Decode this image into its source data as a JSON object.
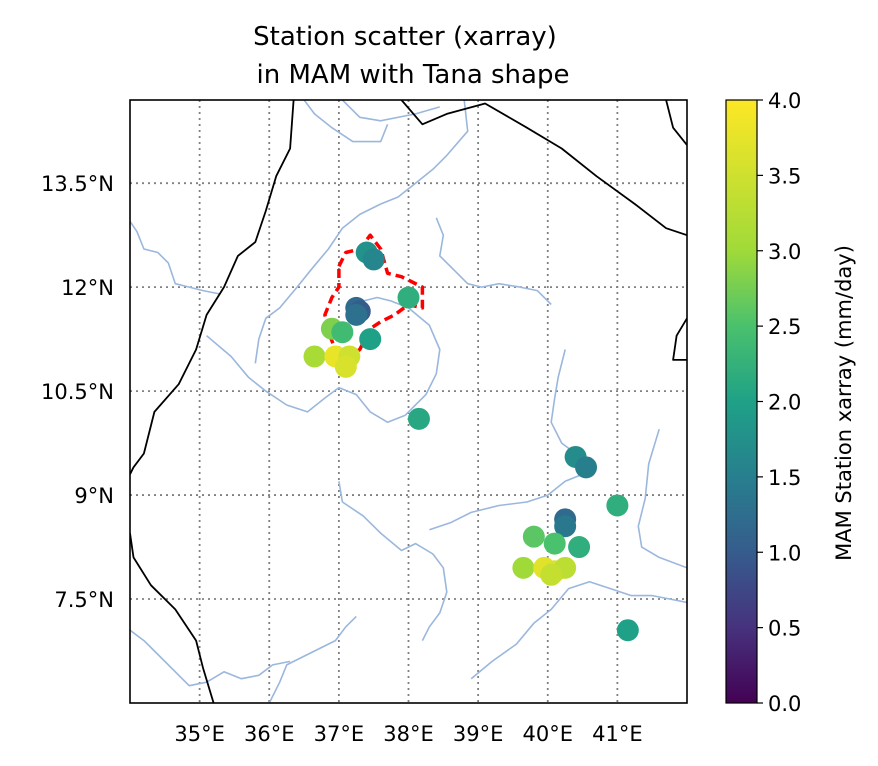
{
  "chart_data": {
    "type": "scatter",
    "title_line1": "Station scatter (xarray)",
    "title_line2": "in MAM with Tana shape",
    "xlim": [
      34.0,
      42.0
    ],
    "ylim": [
      6.0,
      14.7
    ],
    "x_ticks": [
      35,
      36,
      37,
      38,
      39,
      40,
      41
    ],
    "x_tick_labels": [
      "35°E",
      "36°E",
      "37°E",
      "38°E",
      "39°E",
      "40°E",
      "41°E"
    ],
    "y_ticks": [
      7.5,
      9,
      10.5,
      12,
      13.5
    ],
    "y_tick_labels": [
      "7.5°N",
      "9°N",
      "10.5°N",
      "12°N",
      "13.5°N"
    ],
    "grid": true,
    "colorbar": {
      "label": "MAM Station xarray (mm/day)",
      "vmin": 0.0,
      "vmax": 4.0,
      "ticks": [
        0.0,
        0.5,
        1.0,
        1.5,
        2.0,
        2.5,
        3.0,
        3.5,
        4.0
      ],
      "tick_labels": [
        "0.0",
        "0.5",
        "1.0",
        "1.5",
        "2.0",
        "2.5",
        "3.0",
        "3.5",
        "4.0"
      ],
      "colormap": "viridis"
    },
    "points": [
      {
        "lon": 37.4,
        "lat": 12.5,
        "value": 1.8
      },
      {
        "lon": 37.5,
        "lat": 12.4,
        "value": 1.6
      },
      {
        "lon": 38.0,
        "lat": 11.85,
        "value": 2.2
      },
      {
        "lon": 37.25,
        "lat": 11.7,
        "value": 1.2
      },
      {
        "lon": 37.3,
        "lat": 11.65,
        "value": 1.0
      },
      {
        "lon": 37.25,
        "lat": 11.6,
        "value": 1.3
      },
      {
        "lon": 36.9,
        "lat": 11.4,
        "value": 2.8
      },
      {
        "lon": 37.05,
        "lat": 11.35,
        "value": 2.4
      },
      {
        "lon": 37.45,
        "lat": 11.25,
        "value": 2.0
      },
      {
        "lon": 36.65,
        "lat": 11.0,
        "value": 3.1
      },
      {
        "lon": 36.95,
        "lat": 11.0,
        "value": 3.8
      },
      {
        "lon": 37.15,
        "lat": 11.0,
        "value": 3.5
      },
      {
        "lon": 37.1,
        "lat": 10.85,
        "value": 3.6
      },
      {
        "lon": 38.15,
        "lat": 10.1,
        "value": 2.1
      },
      {
        "lon": 40.4,
        "lat": 9.55,
        "value": 1.7
      },
      {
        "lon": 40.55,
        "lat": 9.4,
        "value": 1.5
      },
      {
        "lon": 41.0,
        "lat": 8.85,
        "value": 2.2
      },
      {
        "lon": 40.25,
        "lat": 8.65,
        "value": 1.2
      },
      {
        "lon": 40.25,
        "lat": 8.55,
        "value": 1.4
      },
      {
        "lon": 39.8,
        "lat": 8.4,
        "value": 2.6
      },
      {
        "lon": 40.1,
        "lat": 8.3,
        "value": 2.5
      },
      {
        "lon": 40.45,
        "lat": 8.25,
        "value": 2.2
      },
      {
        "lon": 39.65,
        "lat": 7.95,
        "value": 3.0
      },
      {
        "lon": 39.95,
        "lat": 7.95,
        "value": 3.7
      },
      {
        "lon": 40.1,
        "lat": 7.9,
        "value": 3.6
      },
      {
        "lon": 40.25,
        "lat": 7.95,
        "value": 3.3
      },
      {
        "lon": 40.05,
        "lat": 7.85,
        "value": 3.4
      },
      {
        "lon": 41.15,
        "lat": 7.05,
        "value": 2.0
      }
    ],
    "tana_shape": [
      [
        37.0,
        12.3
      ],
      [
        37.1,
        12.5
      ],
      [
        37.3,
        12.55
      ],
      [
        37.45,
        12.75
      ],
      [
        37.6,
        12.55
      ],
      [
        37.7,
        12.2
      ],
      [
        37.9,
        12.15
      ],
      [
        38.2,
        12.0
      ],
      [
        38.2,
        11.7
      ],
      [
        38.0,
        11.75
      ],
      [
        37.8,
        11.6
      ],
      [
        37.6,
        11.5
      ],
      [
        37.45,
        11.4
      ],
      [
        37.3,
        11.1
      ],
      [
        37.15,
        11.0
      ],
      [
        36.95,
        11.1
      ],
      [
        36.85,
        11.35
      ],
      [
        36.8,
        11.6
      ],
      [
        36.9,
        11.85
      ],
      [
        37.0,
        12.0
      ],
      [
        37.0,
        12.3
      ]
    ],
    "borders": [
      [
        [
          36.35,
          14.7
        ],
        [
          36.3,
          14.0
        ],
        [
          36.1,
          13.6
        ],
        [
          35.95,
          13.1
        ],
        [
          35.8,
          12.65
        ],
        [
          35.55,
          12.45
        ],
        [
          35.35,
          12.0
        ],
        [
          35.1,
          11.6
        ],
        [
          34.95,
          11.1
        ],
        [
          34.7,
          10.6
        ],
        [
          34.35,
          10.2
        ],
        [
          34.2,
          9.6
        ],
        [
          34.05,
          9.4
        ],
        [
          34.0,
          9.3
        ]
      ],
      [
        [
          34.0,
          8.45
        ],
        [
          34.05,
          8.1
        ],
        [
          34.3,
          7.7
        ],
        [
          34.65,
          7.35
        ],
        [
          34.95,
          6.9
        ],
        [
          35.05,
          6.5
        ],
        [
          35.2,
          6.0
        ]
      ],
      [
        [
          37.9,
          14.7
        ],
        [
          38.2,
          14.35
        ],
        [
          38.55,
          14.5
        ],
        [
          39.1,
          14.65
        ],
        [
          39.7,
          14.3
        ],
        [
          40.2,
          14.0
        ],
        [
          40.7,
          13.6
        ],
        [
          41.25,
          13.2
        ],
        [
          41.7,
          12.85
        ],
        [
          42.0,
          12.75
        ]
      ],
      [
        [
          41.7,
          14.7
        ],
        [
          41.8,
          14.3
        ],
        [
          42.0,
          14.05
        ]
      ],
      [
        [
          42.0,
          11.55
        ],
        [
          41.85,
          11.3
        ],
        [
          41.8,
          10.95
        ],
        [
          42.0,
          10.95
        ]
      ]
    ],
    "rivers": [
      [
        [
          36.5,
          14.7
        ],
        [
          36.65,
          14.5
        ],
        [
          36.9,
          14.3
        ],
        [
          37.2,
          14.1
        ],
        [
          37.6,
          14.1
        ],
        [
          37.7,
          14.35
        ]
      ],
      [
        [
          37.05,
          14.7
        ],
        [
          37.3,
          14.45
        ],
        [
          37.6,
          14.4
        ],
        [
          38.1,
          14.5
        ],
        [
          38.45,
          14.6
        ]
      ],
      [
        [
          38.8,
          14.7
        ],
        [
          38.85,
          14.25
        ],
        [
          38.55,
          13.9
        ],
        [
          38.35,
          13.7
        ],
        [
          38.1,
          13.5
        ],
        [
          37.85,
          13.3
        ],
        [
          37.6,
          13.2
        ],
        [
          37.3,
          13.05
        ],
        [
          37.05,
          12.85
        ],
        [
          36.85,
          12.55
        ],
        [
          36.6,
          12.25
        ],
        [
          36.4,
          12.0
        ],
        [
          36.15,
          11.7
        ],
        [
          35.95,
          11.55
        ],
        [
          35.85,
          11.25
        ],
        [
          35.8,
          10.9
        ]
      ],
      [
        [
          34.0,
          12.95
        ],
        [
          34.1,
          12.8
        ],
        [
          34.2,
          12.55
        ],
        [
          34.4,
          12.5
        ],
        [
          34.55,
          12.35
        ],
        [
          34.65,
          12.05
        ],
        [
          34.85,
          12.0
        ],
        [
          35.05,
          11.95
        ],
        [
          35.3,
          11.9
        ]
      ],
      [
        [
          35.1,
          11.3
        ],
        [
          35.45,
          11.0
        ],
        [
          35.7,
          10.7
        ],
        [
          35.95,
          10.5
        ],
        [
          36.25,
          10.3
        ],
        [
          36.55,
          10.2
        ],
        [
          36.8,
          10.4
        ],
        [
          37.0,
          10.55
        ],
        [
          37.25,
          10.45
        ],
        [
          37.45,
          10.2
        ],
        [
          37.7,
          10.05
        ],
        [
          37.95,
          10.15
        ],
        [
          38.25,
          10.45
        ],
        [
          38.4,
          10.75
        ],
        [
          38.45,
          11.1
        ],
        [
          38.3,
          11.45
        ],
        [
          38.0,
          11.7
        ],
        [
          37.75,
          11.8
        ],
        [
          37.55,
          11.85
        ],
        [
          37.35,
          11.8
        ]
      ],
      [
        [
          38.4,
          13.0
        ],
        [
          38.5,
          12.75
        ],
        [
          38.45,
          12.45
        ],
        [
          38.65,
          12.25
        ],
        [
          38.85,
          12.05
        ],
        [
          39.05,
          12.0
        ],
        [
          39.3,
          12.05
        ],
        [
          39.6,
          12.0
        ],
        [
          39.85,
          11.95
        ],
        [
          40.05,
          11.75
        ]
      ],
      [
        [
          37.0,
          9.2
        ],
        [
          37.05,
          8.9
        ],
        [
          37.35,
          8.7
        ],
        [
          37.6,
          8.45
        ],
        [
          37.9,
          8.2
        ],
        [
          38.1,
          8.3
        ],
        [
          38.35,
          8.15
        ],
        [
          38.5,
          7.95
        ],
        [
          38.55,
          7.6
        ],
        [
          38.45,
          7.3
        ],
        [
          38.3,
          7.1
        ],
        [
          38.2,
          6.9
        ]
      ],
      [
        [
          36.3,
          6.6
        ],
        [
          36.05,
          6.55
        ],
        [
          35.85,
          6.4
        ],
        [
          35.6,
          6.35
        ],
        [
          35.35,
          6.45
        ],
        [
          35.1,
          6.3
        ],
        [
          34.85,
          6.25
        ],
        [
          34.6,
          6.5
        ],
        [
          34.35,
          6.75
        ],
        [
          34.2,
          6.9
        ],
        [
          34.0,
          7.05
        ]
      ],
      [
        [
          36.0,
          6.0
        ],
        [
          36.15,
          6.3
        ],
        [
          36.25,
          6.55
        ],
        [
          36.55,
          6.7
        ],
        [
          36.95,
          6.9
        ],
        [
          37.1,
          7.1
        ],
        [
          37.25,
          7.25
        ]
      ],
      [
        [
          38.9,
          6.35
        ],
        [
          39.2,
          6.6
        ],
        [
          39.55,
          6.85
        ],
        [
          39.8,
          7.15
        ],
        [
          40.05,
          7.35
        ],
        [
          40.3,
          7.65
        ],
        [
          40.6,
          7.75
        ],
        [
          40.9,
          7.65
        ],
        [
          41.2,
          7.55
        ],
        [
          41.5,
          7.55
        ],
        [
          41.75,
          7.5
        ],
        [
          42.0,
          7.45
        ]
      ],
      [
        [
          38.3,
          8.5
        ],
        [
          38.6,
          8.6
        ],
        [
          38.9,
          8.75
        ],
        [
          39.3,
          8.85
        ],
        [
          39.7,
          8.9
        ],
        [
          40.0,
          9.0
        ],
        [
          40.25,
          9.2
        ],
        [
          40.5,
          9.3
        ]
      ],
      [
        [
          40.25,
          11.1
        ],
        [
          40.15,
          10.7
        ],
        [
          40.1,
          10.4
        ],
        [
          40.05,
          10.05
        ],
        [
          40.2,
          9.75
        ],
        [
          40.4,
          9.6
        ],
        [
          40.5,
          9.45
        ]
      ],
      [
        [
          41.6,
          9.95
        ],
        [
          41.45,
          9.45
        ],
        [
          41.4,
          8.95
        ],
        [
          41.3,
          8.55
        ],
        [
          41.35,
          8.25
        ],
        [
          41.6,
          8.1
        ],
        [
          42.0,
          7.95
        ]
      ]
    ]
  }
}
